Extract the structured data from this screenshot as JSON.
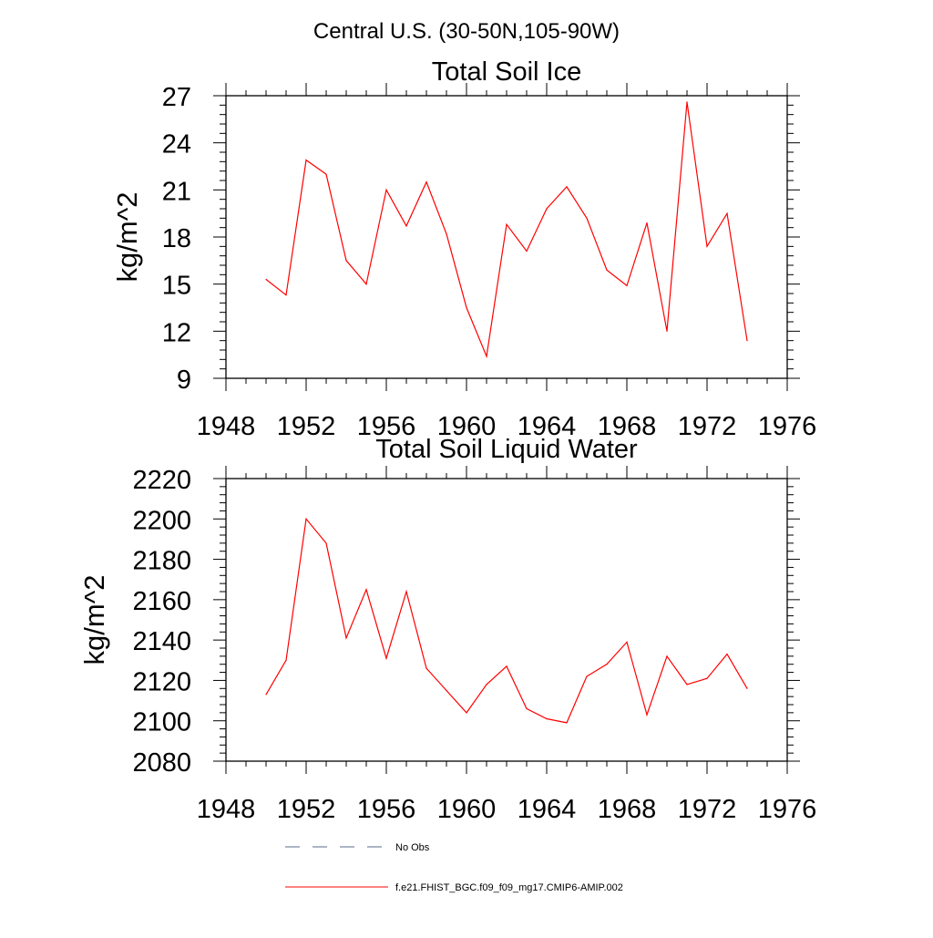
{
  "figure": {
    "supertitle": "Central U.S. (30-50N,105-90W)"
  },
  "chart_data": [
    {
      "type": "line",
      "title": "Total Soil Ice",
      "xlabel": "",
      "ylabel": "kg/m^2",
      "xlim": [
        1948,
        1976
      ],
      "ylim": [
        9,
        27
      ],
      "xticks": [
        1948,
        1952,
        1956,
        1960,
        1964,
        1968,
        1972,
        1976
      ],
      "yticks": [
        9,
        12,
        15,
        18,
        21,
        24,
        27
      ],
      "grid": false,
      "series": [
        {
          "name": "f.e21.FHIST_BGC.f09_f09_mg17.CMIP6-AMIP.002",
          "color": "#ff0000",
          "x": [
            1950,
            1951,
            1952,
            1953,
            1954,
            1955,
            1956,
            1957,
            1958,
            1959,
            1960,
            1961,
            1962,
            1963,
            1964,
            1965,
            1966,
            1967,
            1968,
            1969,
            1970,
            1971,
            1972,
            1973,
            1974
          ],
          "y": [
            15.3,
            14.3,
            22.9,
            22.0,
            16.5,
            15.0,
            21.0,
            18.7,
            21.5,
            18.2,
            13.5,
            10.4,
            18.8,
            17.1,
            19.8,
            21.2,
            19.2,
            15.9,
            14.9,
            18.9,
            12.0,
            26.6,
            17.4,
            19.5,
            11.4
          ]
        }
      ]
    },
    {
      "type": "line",
      "title": "Total Soil Liquid Water",
      "xlabel": "",
      "ylabel": "kg/m^2",
      "xlim": [
        1948,
        1976
      ],
      "ylim": [
        2080,
        2220
      ],
      "xticks": [
        1948,
        1952,
        1956,
        1960,
        1964,
        1968,
        1972,
        1976
      ],
      "yticks": [
        2080,
        2100,
        2120,
        2140,
        2160,
        2180,
        2200,
        2220
      ],
      "grid": false,
      "series": [
        {
          "name": "f.e21.FHIST_BGC.f09_f09_mg17.CMIP6-AMIP.002",
          "color": "#ff0000",
          "x": [
            1950,
            1951,
            1952,
            1953,
            1954,
            1955,
            1956,
            1957,
            1958,
            1959,
            1960,
            1961,
            1962,
            1963,
            1964,
            1965,
            1966,
            1967,
            1968,
            1969,
            1970,
            1971,
            1972,
            1973,
            1974
          ],
          "y": [
            2113,
            2130,
            2200,
            2188,
            2141,
            2165,
            2131,
            2164,
            2126,
            2115,
            2104,
            2118,
            2127,
            2106,
            2101,
            2099,
            2122,
            2128,
            2139,
            2103,
            2132,
            2118,
            2121,
            2133,
            2116
          ]
        }
      ]
    }
  ],
  "legend": {
    "position": "bottom",
    "entries": [
      {
        "label": "No Obs",
        "color": "#5a6a8a",
        "style": "dashed"
      },
      {
        "label": "f.e21.FHIST_BGC.f09_f09_mg17.CMIP6-AMIP.002",
        "color": "#ff0000",
        "style": "solid"
      }
    ]
  }
}
